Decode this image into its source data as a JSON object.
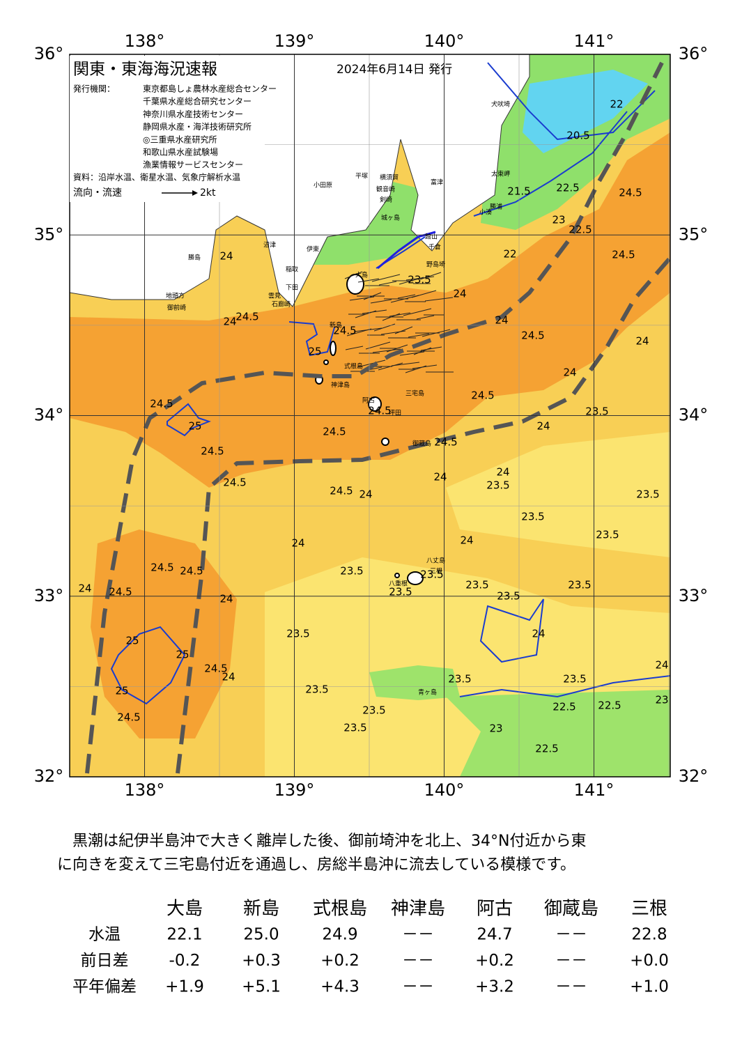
{
  "header": {
    "title": "関東・東海海況速報",
    "date": "2024年6月14日 発行",
    "agencies_label": "発行機関：",
    "agencies": [
      "東京都島しょ農林水産総合センター",
      "千葉県水産総合研究センター",
      "神奈川県水産技術センター",
      "静岡県水産・海洋技術研究所",
      "◎三重県水産研究所",
      "和歌山県水産試験場",
      "漁業情報サービスセンター"
    ],
    "source": "資料：沿岸水温、衛星水温、気象庁解析水温",
    "legend_label": "流向・流速",
    "legend_unit": "2kt"
  },
  "map": {
    "lon_ticks": [
      {
        "value": 138,
        "label": "138°"
      },
      {
        "value": 139,
        "label": "139°"
      },
      {
        "value": 140,
        "label": "140°"
      },
      {
        "value": 141,
        "label": "141°"
      }
    ],
    "lat_ticks": [
      {
        "value": 36,
        "label": "36°"
      },
      {
        "value": 35,
        "label": "35°"
      },
      {
        "value": 34,
        "label": "34°"
      },
      {
        "value": 33,
        "label": "33°"
      },
      {
        "value": 32,
        "label": "32°"
      }
    ],
    "contour_labels": [
      "24.5",
      "24.5",
      "22",
      "20.5",
      "21.5",
      "22.5",
      "23",
      "22.5",
      "22",
      "24.5",
      "24",
      "23.5",
      "24",
      "23.5",
      "24",
      "24.5",
      "24.5",
      "24",
      "24",
      "23.5",
      "23.5",
      "23.5",
      "24",
      "23.5",
      "23.5",
      "23.5",
      "24",
      "23.5",
      "22.5",
      "22.5",
      "23",
      "24",
      "23",
      "22.5",
      "23.5",
      "24.5",
      "24.5",
      "24.5",
      "25",
      "24.5",
      "24",
      "24",
      "23.5",
      "23.5",
      "23.5",
      "23.5",
      "23.5",
      "23.5",
      "23.5",
      "24.5",
      "24.5",
      "24.5",
      "24.5",
      "24",
      "25",
      "25",
      "25",
      "24.5",
      "24.5",
      "24",
      "24",
      "24.5",
      "24",
      "24.5",
      "24.5",
      "25",
      "24",
      "24",
      "24",
      "23.5"
    ],
    "place_names": [
      "犬吠埼",
      "太東岬",
      "勝浦",
      "小湊",
      "富津",
      "館山",
      "千倉",
      "野島埼",
      "平塚",
      "横須賀",
      "観音崎",
      "剣崎",
      "城ヶ島",
      "小田原",
      "伊東",
      "稲取",
      "下田",
      "雲見",
      "石廊崎",
      "沼津",
      "勝島",
      "地頭方",
      "御前崎",
      "大島",
      "新島",
      "式根島",
      "神津島",
      "三宅島",
      "阿古",
      "坪田",
      "御蔵島",
      "八丈島",
      "三根",
      "八重根",
      "青ヶ島"
    ]
  },
  "description": [
    "　黒潮は紀伊半島沖で大きく離岸した後、御前埼沖を北上、34°N付近から東",
    "に向きを変えて三宅島付近を通過し、房総半島沖に流去している模様です。"
  ],
  "table": {
    "columns": [
      "大島",
      "新島",
      "式根島",
      "神津島",
      "阿古",
      "御蔵島",
      "三根"
    ],
    "rows": [
      {
        "label": "水温",
        "cells": [
          "22.1",
          "25.0",
          "24.9",
          "－－",
          "24.7",
          "－－",
          "22.8"
        ]
      },
      {
        "label": "前日差",
        "cells": [
          "-0.2",
          "+0.3",
          "+0.2",
          "－－",
          "+0.2",
          "－－",
          "+0.0"
        ]
      },
      {
        "label": "平年偏差",
        "cells": [
          "+1.9",
          "+5.1",
          "+4.3",
          "－－",
          "+3.2",
          "－－",
          "+1.0"
        ]
      }
    ]
  }
}
